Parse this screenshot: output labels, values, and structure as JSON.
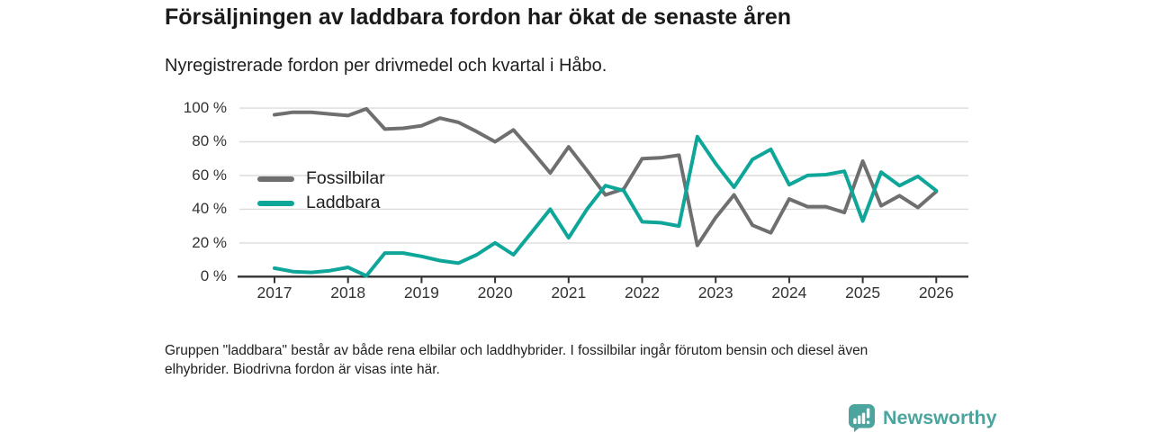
{
  "header": {
    "title": "Försäljningen av laddbara fordon har ökat de senaste åren",
    "subtitle": "Nyregistrerade fordon per drivmedel och kvartal i Håbo."
  },
  "chart_data": {
    "type": "line",
    "x_unit": "quarter",
    "x_start": "2017 Q1",
    "x_end": "2026 Q1",
    "x_tick_labels": [
      "2017",
      "2018",
      "2019",
      "2020",
      "2021",
      "2022",
      "2023",
      "2024",
      "2025",
      "2026"
    ],
    "y_tick_labels": [
      "0 %",
      "20 %",
      "40 %",
      "60 %",
      "80 %",
      "100 %"
    ],
    "ylim": [
      0,
      100
    ],
    "grid": "horizontal",
    "legend_position": "inside-left",
    "colors": {
      "fossil_gray": "#6F6F6F",
      "laddbara_teal": "#0FA69A",
      "axis": "#333333",
      "gridline": "#DCDCDC"
    },
    "series": [
      {
        "name": "Fossilbilar",
        "color": "#6F6F6F",
        "values": [
          96,
          97.5,
          97.5,
          96.5,
          95.5,
          99.5,
          87.5,
          88,
          89.5,
          94,
          91.5,
          86,
          80,
          87,
          74.5,
          61.5,
          77,
          63,
          48.5,
          52,
          70,
          70.5,
          72,
          18.5,
          35,
          48.5,
          30.5,
          26,
          46,
          41.5,
          41.5,
          38,
          68.5,
          42,
          48,
          41,
          50.5
        ]
      },
      {
        "name": "Laddbara",
        "color": "#0FA69A",
        "values": [
          5,
          3,
          2.5,
          3.5,
          5.5,
          0.5,
          14,
          14,
          12,
          9.5,
          8,
          13,
          20,
          13,
          26.5,
          40,
          23,
          40,
          54,
          51,
          32.5,
          32,
          30,
          83,
          67,
          53,
          69.5,
          75.5,
          54.5,
          60,
          60.5,
          62.5,
          33,
          62,
          54,
          59.5,
          51
        ]
      }
    ]
  },
  "footnote": {
    "line1": "Gruppen \"laddbara\" består av både rena elbilar och laddhybrider. I fossilbilar ingår förutom bensin och diesel även",
    "line2": "elhybrider. Biodrivna fordon är visas inte här."
  },
  "logo": {
    "text": "Newsworthy",
    "color": "#4BA49D",
    "icon": "newsworthy-bar-chart-bubble-icon"
  }
}
